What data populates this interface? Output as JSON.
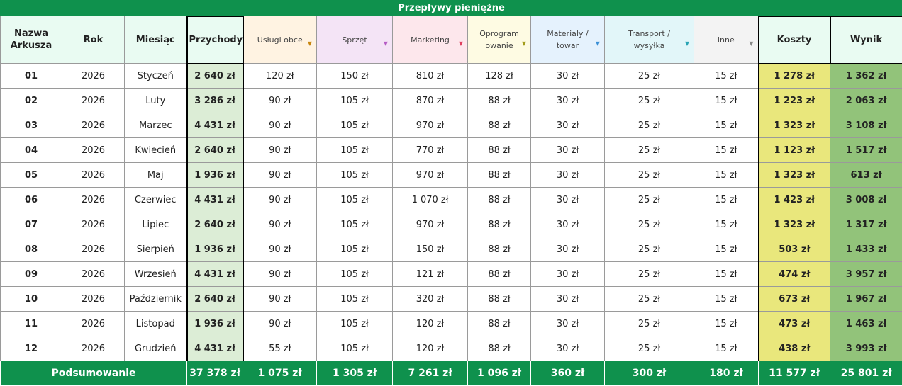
{
  "title": "Przepływy pieniężne",
  "headers": {
    "sheet": "Nazwa Arkusza",
    "year": "Rok",
    "month": "Miesiąc",
    "revenue": "Przychody",
    "costs": "Koszty",
    "result": "Wynik"
  },
  "categories": [
    {
      "label": "Usługi obce",
      "bg": "#fff3e2",
      "arrow": "#c8860f"
    },
    {
      "label": "Sprzęt",
      "bg": "#f4e4f6",
      "arrow": "#b55bc4"
    },
    {
      "label": "Marketing",
      "bg": "#fde7ec",
      "arrow": "#e0405e"
    },
    {
      "label": "Oprogramowanie",
      "bg": "#fefbe3",
      "arrow": "#a39d1d"
    },
    {
      "label": "Materiały / towar",
      "bg": "#e5f2fd",
      "arrow": "#3a90d6"
    },
    {
      "label": "Transport / wysyłka",
      "bg": "#e2f6f9",
      "arrow": "#2aa5b5"
    },
    {
      "label": "Inne",
      "bg": "#f3f3f3",
      "arrow": "#888888"
    }
  ],
  "rows": [
    {
      "sheet": "01",
      "year": "2026",
      "month": "Styczeń",
      "revenue": "2 640 zł",
      "c": [
        "120 zł",
        "150 zł",
        "810 zł",
        "128 zł",
        "30 zł",
        "25 zł",
        "15 zł"
      ],
      "costs": "1 278 zł",
      "result": "1 362 zł"
    },
    {
      "sheet": "02",
      "year": "2026",
      "month": "Luty",
      "revenue": "3 286 zł",
      "c": [
        "90 zł",
        "105 zł",
        "870 zł",
        "88 zł",
        "30 zł",
        "25 zł",
        "15 zł"
      ],
      "costs": "1 223 zł",
      "result": "2 063 zł"
    },
    {
      "sheet": "03",
      "year": "2026",
      "month": "Marzec",
      "revenue": "4 431 zł",
      "c": [
        "90 zł",
        "105 zł",
        "970 zł",
        "88 zł",
        "30 zł",
        "25 zł",
        "15 zł"
      ],
      "costs": "1 323 zł",
      "result": "3 108 zł"
    },
    {
      "sheet": "04",
      "year": "2026",
      "month": "Kwiecień",
      "revenue": "2 640 zł",
      "c": [
        "90 zł",
        "105 zł",
        "770 zł",
        "88 zł",
        "30 zł",
        "25 zł",
        "15 zł"
      ],
      "costs": "1 123 zł",
      "result": "1 517 zł"
    },
    {
      "sheet": "05",
      "year": "2026",
      "month": "Maj",
      "revenue": "1 936 zł",
      "c": [
        "90 zł",
        "105 zł",
        "970 zł",
        "88 zł",
        "30 zł",
        "25 zł",
        "15 zł"
      ],
      "costs": "1 323 zł",
      "result": "613 zł"
    },
    {
      "sheet": "06",
      "year": "2026",
      "month": "Czerwiec",
      "revenue": "4 431 zł",
      "c": [
        "90 zł",
        "105 zł",
        "1 070 zł",
        "88 zł",
        "30 zł",
        "25 zł",
        "15 zł"
      ],
      "costs": "1 423 zł",
      "result": "3 008 zł"
    },
    {
      "sheet": "07",
      "year": "2026",
      "month": "Lipiec",
      "revenue": "2 640 zł",
      "c": [
        "90 zł",
        "105 zł",
        "970 zł",
        "88 zł",
        "30 zł",
        "25 zł",
        "15 zł"
      ],
      "costs": "1 323 zł",
      "result": "1 317 zł"
    },
    {
      "sheet": "08",
      "year": "2026",
      "month": "Sierpień",
      "revenue": "1 936 zł",
      "c": [
        "90 zł",
        "105 zł",
        "150 zł",
        "88 zł",
        "30 zł",
        "25 zł",
        "15 zł"
      ],
      "costs": "503 zł",
      "result": "1 433 zł"
    },
    {
      "sheet": "09",
      "year": "2026",
      "month": "Wrzesień",
      "revenue": "4 431 zł",
      "c": [
        "90 zł",
        "105 zł",
        "121 zł",
        "88 zł",
        "30 zł",
        "25 zł",
        "15 zł"
      ],
      "costs": "474 zł",
      "result": "3 957 zł"
    },
    {
      "sheet": "10",
      "year": "2026",
      "month": "Październik",
      "revenue": "2 640 zł",
      "c": [
        "90 zł",
        "105 zł",
        "320 zł",
        "88 zł",
        "30 zł",
        "25 zł",
        "15 zł"
      ],
      "costs": "673 zł",
      "result": "1 967 zł"
    },
    {
      "sheet": "11",
      "year": "2026",
      "month": "Listopad",
      "revenue": "1 936 zł",
      "c": [
        "90 zł",
        "105 zł",
        "120 zł",
        "88 zł",
        "30 zł",
        "25 zł",
        "15 zł"
      ],
      "costs": "473 zł",
      "result": "1 463 zł"
    },
    {
      "sheet": "12",
      "year": "2026",
      "month": "Grudzień",
      "revenue": "4 431 zł",
      "c": [
        "55 zł",
        "105 zł",
        "120 zł",
        "88 zł",
        "30 zł",
        "25 zł",
        "15 zł"
      ],
      "costs": "438 zł",
      "result": "3 993 zł"
    }
  ],
  "summary": {
    "label": "Podsumowanie",
    "revenue": "37 378 zł",
    "c": [
      "1 075 zł",
      "1 305 zł",
      "7 261 zł",
      "1 096 zł",
      "360 zł",
      "300 zł",
      "180 zł"
    ],
    "costs": "11 577 zł",
    "result": "25 801 zł"
  }
}
